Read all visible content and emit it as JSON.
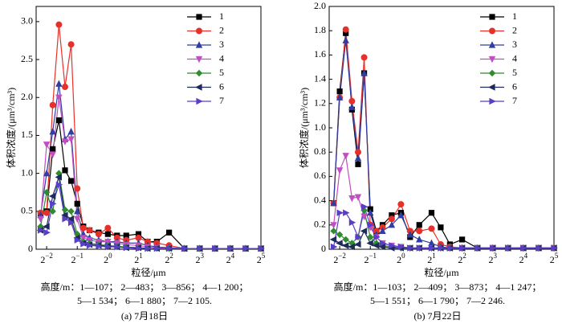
{
  "chart_data": [
    {
      "type": "line",
      "ylabel": "体积浓度/(μm³/cm³)",
      "xlabel": "粒径/μm",
      "notes": [
        "高度/m：1—107； 2—483； 3—856； 4—1 200；",
        "5—1 534； 6—1 880； 7—2 105."
      ],
      "caption": "(a)  7月18日",
      "log_x": true,
      "legend": "upper right",
      "xlim": [
        0.197,
        32
      ],
      "xticks": [
        {
          "value": 0.25,
          "label": "2−2"
        },
        {
          "value": 0.5,
          "label": "2−1"
        },
        {
          "value": 1,
          "label": "20"
        },
        {
          "value": 2,
          "label": "21"
        },
        {
          "value": 4,
          "label": "22"
        },
        {
          "value": 8,
          "label": "23"
        },
        {
          "value": 16,
          "label": "24"
        },
        {
          "value": 32,
          "label": "25"
        }
      ],
      "ylim": [
        0,
        3.2
      ],
      "yticks": [
        0,
        0.5,
        {
          "value": 1,
          "label": "1.0"
        },
        1.5,
        {
          "value": 2,
          "label": "2.0"
        },
        2.5,
        {
          "value": 3,
          "label": "3.0"
        }
      ],
      "x": [
        0.218,
        0.25,
        0.287,
        0.33,
        0.379,
        0.435,
        0.5,
        0.574,
        0.66,
        0.812,
        1,
        1.231,
        1.516,
        2,
        2.462,
        3.031,
        4,
        5.657,
        8,
        11.31,
        16,
        22.63,
        32
      ],
      "series": [
        {
          "name": "1",
          "color": "#000000",
          "marker": "square",
          "values": [
            0.45,
            0.5,
            1.32,
            1.7,
            1.04,
            0.9,
            0.6,
            0.3,
            0.25,
            0.22,
            0.2,
            0.18,
            0.18,
            0.2,
            0.1,
            0.1,
            0.22,
            0.01,
            0.01,
            0.01,
            0.01,
            0.01,
            0.01
          ]
        },
        {
          "name": "2",
          "color": "#e8302a",
          "marker": "circle",
          "values": [
            0.48,
            0.48,
            1.9,
            2.96,
            2.14,
            2.7,
            0.8,
            0.28,
            0.25,
            0.2,
            0.28,
            0.15,
            0.12,
            0.15,
            0.1,
            0.08,
            0.05,
            0.01,
            0.01,
            0.01,
            0.01,
            0.01,
            0.01
          ]
        },
        {
          "name": "3",
          "color": "#2f3ea0",
          "marker": "triangle-up",
          "values": [
            0.45,
            1.0,
            1.55,
            2.18,
            1.45,
            1.55,
            0.5,
            0.2,
            0.15,
            0.12,
            0.1,
            0.1,
            0.08,
            0.08,
            0.05,
            0.03,
            0.02,
            0.01,
            0.01,
            0.01,
            0.01,
            0.01,
            0.01
          ]
        },
        {
          "name": "4",
          "color": "#c24fc2",
          "marker": "triangle-down",
          "values": [
            0.4,
            1.38,
            1.25,
            2.0,
            1.42,
            1.45,
            0.4,
            0.15,
            0.12,
            0.1,
            0.1,
            0.08,
            0.06,
            0.05,
            0.03,
            0.02,
            0.01,
            0.01,
            0.01,
            0.01,
            0.01,
            0.01,
            0.01
          ]
        },
        {
          "name": "5",
          "color": "#2e8b2e",
          "marker": "diamond",
          "values": [
            0.3,
            0.75,
            0.5,
            1.0,
            0.52,
            0.5,
            0.2,
            0.1,
            0.08,
            0.06,
            0.05,
            0.04,
            0.03,
            0.02,
            0.01,
            0.01,
            0.01,
            0.01,
            0.01,
            0.01,
            0.01,
            0.01,
            0.01
          ]
        },
        {
          "name": "6",
          "color": "#1d2a5a",
          "marker": "triangle-left",
          "values": [
            0.25,
            0.3,
            0.7,
            0.95,
            0.45,
            0.4,
            0.15,
            0.08,
            0.06,
            0.05,
            0.04,
            0.03,
            0.02,
            0.02,
            0.01,
            0.01,
            0.01,
            0.01,
            0.01,
            0.01,
            0.01,
            0.01,
            0.01
          ]
        },
        {
          "name": "7",
          "color": "#5a3ec8",
          "marker": "triangle-right",
          "values": [
            0.25,
            0.22,
            0.6,
            0.85,
            0.4,
            0.35,
            0.12,
            0.07,
            0.05,
            0.04,
            0.03,
            0.03,
            0.02,
            0.01,
            0.01,
            0.01,
            0.01,
            0.01,
            0.01,
            0.01,
            0.01,
            0.01,
            0.01
          ]
        }
      ]
    },
    {
      "type": "line",
      "ylabel": "体积浓度/(μm³/cm³)",
      "xlabel": "粒径/μm",
      "notes": [
        "高度/m：1—103； 2—409； 3—873； 4—1 247；",
        "5—1 551； 6—1 790； 7—2 246."
      ],
      "caption": "(b)  7月22日",
      "log_x": true,
      "legend": "upper right",
      "xlim": [
        0.197,
        32
      ],
      "xticks": [
        {
          "value": 0.25,
          "label": "2−2"
        },
        {
          "value": 0.5,
          "label": "2−1"
        },
        {
          "value": 1,
          "label": "20"
        },
        {
          "value": 2,
          "label": "21"
        },
        {
          "value": 4,
          "label": "22"
        },
        {
          "value": 8,
          "label": "23"
        },
        {
          "value": 16,
          "label": "24"
        },
        {
          "value": 32,
          "label": "25"
        }
      ],
      "ylim": [
        0,
        2.0
      ],
      "yticks": [
        0,
        0.2,
        0.4,
        0.6,
        0.8,
        {
          "value": 1,
          "label": "1.0"
        },
        1.2,
        1.4,
        1.6,
        1.8,
        {
          "value": 2,
          "label": "2.0"
        }
      ],
      "x": [
        0.218,
        0.25,
        0.287,
        0.33,
        0.379,
        0.435,
        0.5,
        0.574,
        0.66,
        0.812,
        1,
        1.231,
        1.516,
        2,
        2.462,
        3.031,
        4,
        5.657,
        8,
        11.31,
        16,
        22.63,
        32
      ],
      "series": [
        {
          "name": "1",
          "color": "#000000",
          "marker": "square",
          "values": [
            0.38,
            1.3,
            1.78,
            1.15,
            0.7,
            1.45,
            0.33,
            0.15,
            0.2,
            0.28,
            0.3,
            0.1,
            0.2,
            0.3,
            0.18,
            0.04,
            0.08,
            0.01,
            0.01,
            0.01,
            0.01,
            0.01,
            0.01
          ]
        },
        {
          "name": "2",
          "color": "#e8302a",
          "marker": "circle",
          "values": [
            0.38,
            1.25,
            1.81,
            1.22,
            0.8,
            1.58,
            0.2,
            0.15,
            0.18,
            0.25,
            0.37,
            0.15,
            0.15,
            0.17,
            0.04,
            0.02,
            0.01,
            0.01,
            0.01,
            0.01,
            0.01,
            0.01,
            0.01
          ]
        },
        {
          "name": "3",
          "color": "#2f3ea0",
          "marker": "triangle-up",
          "values": [
            0.38,
            1.25,
            1.72,
            1.17,
            0.75,
            1.45,
            0.3,
            0.12,
            0.15,
            0.2,
            0.28,
            0.12,
            0.08,
            0.05,
            0.02,
            0.01,
            0.01,
            0.01,
            0.01,
            0.01,
            0.01,
            0.01,
            0.01
          ]
        },
        {
          "name": "4",
          "color": "#c24fc2",
          "marker": "triangle-down",
          "values": [
            0.2,
            0.65,
            0.77,
            0.42,
            0.43,
            0.27,
            0.18,
            0.1,
            0.05,
            0.03,
            0.02,
            0.01,
            0.01,
            0.01,
            0.01,
            0.01,
            0.01,
            0.01,
            0.01,
            0.01,
            0.01,
            0.01,
            0.01
          ]
        },
        {
          "name": "5",
          "color": "#2e8b2e",
          "marker": "diamond",
          "values": [
            0.15,
            0.12,
            0.08,
            0.05,
            0.1,
            0.32,
            0.1,
            0.05,
            0.03,
            0.02,
            0.01,
            0.01,
            0.01,
            0.01,
            0.01,
            0.01,
            0.01,
            0.01,
            0.01,
            0.01,
            0.01,
            0.01,
            0.01
          ]
        },
        {
          "name": "6",
          "color": "#1d2a5a",
          "marker": "triangle-left",
          "values": [
            0.08,
            0.05,
            0.03,
            0.02,
            0.04,
            0.15,
            0.05,
            0.03,
            0.02,
            0.01,
            0.01,
            0.01,
            0.01,
            0.01,
            0.01,
            0.01,
            0.01,
            0.01,
            0.01,
            0.01,
            0.01,
            0.01,
            0.01
          ]
        },
        {
          "name": "7",
          "color": "#5a3ec8",
          "marker": "triangle-right",
          "values": [
            0.02,
            0.3,
            0.3,
            0.22,
            0.1,
            0.35,
            0.2,
            0.1,
            0.05,
            0.03,
            0.02,
            0.01,
            0.01,
            0.01,
            0.01,
            0.01,
            0.01,
            0.01,
            0.01,
            0.01,
            0.01,
            0.01,
            0.01
          ]
        }
      ]
    }
  ]
}
